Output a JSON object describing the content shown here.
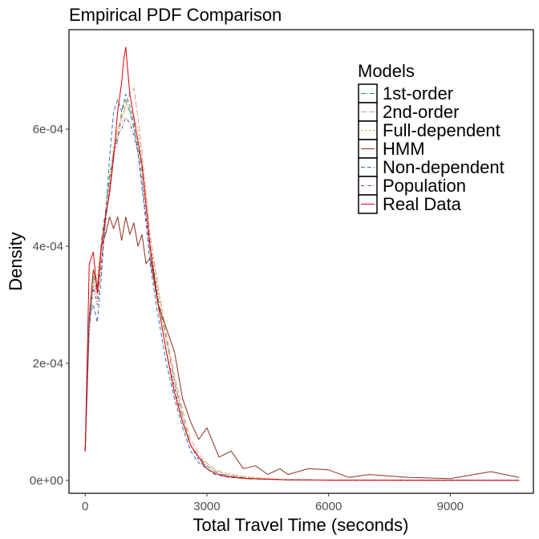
{
  "chart_data": {
    "type": "line",
    "title": "Empirical PDF Comparison",
    "xlabel": "Total Travel Time (seconds)",
    "ylabel": "Density",
    "xlim": [
      -400,
      11050
    ],
    "ylim": [
      -2.2e-05,
      0.00077
    ],
    "x_ticks": [
      0,
      3000,
      6000,
      9000
    ],
    "x_tick_labels": [
      "0",
      "3000",
      "6000",
      "9000"
    ],
    "y_ticks": [
      0,
      0.0002,
      0.0004,
      0.0006
    ],
    "y_tick_labels": [
      "0e+00",
      "2e-04",
      "4e-04",
      "6e-04"
    ],
    "grid": false,
    "legend": {
      "title": "Models",
      "position": "top-right"
    },
    "series": [
      {
        "name": "1st-order",
        "color": "#2e8b57",
        "dash": "6,2,1,2",
        "x": [
          0,
          100,
          200,
          300,
          400,
          500,
          600,
          700,
          800,
          900,
          1000,
          1100,
          1200,
          1300,
          1400,
          1500,
          1600,
          1800,
          2000,
          2200,
          2400,
          2600,
          2800,
          3000,
          3200,
          3500,
          4000,
          4500,
          5000,
          6000,
          8000,
          10700
        ],
        "y": [
          5e-05,
          0.00027,
          0.00035,
          0.00032,
          0.00041,
          0.00046,
          0.00052,
          0.00056,
          0.00058,
          0.00063,
          0.00065,
          0.00063,
          0.0006,
          0.00057,
          0.00053,
          0.00047,
          0.0004,
          0.00031,
          0.00024,
          0.00017,
          0.00011,
          6e-05,
          4e-05,
          2.5e-05,
          1.5e-05,
          8e-06,
          4e-06,
          2e-06,
          1e-06,
          5e-07,
          3e-07,
          0
        ]
      },
      {
        "name": "2nd-order",
        "color": "#e8998d",
        "dash": "7,3",
        "x": [
          0,
          100,
          200,
          300,
          400,
          500,
          600,
          700,
          800,
          900,
          1000,
          1100,
          1200,
          1300,
          1400,
          1500,
          1600,
          1800,
          2000,
          2200,
          2400,
          2600,
          2800,
          3000,
          3200,
          3500,
          4000,
          4500,
          5000,
          6000,
          8000,
          10700
        ],
        "y": [
          5e-05,
          0.00026,
          0.00034,
          0.00031,
          0.00038,
          0.00044,
          0.0005,
          0.00055,
          0.0006,
          0.00062,
          0.00064,
          0.00066,
          0.00067,
          0.00062,
          0.00056,
          0.00049,
          0.00042,
          0.00033,
          0.00025,
          0.00018,
          0.00012,
          7e-05,
          4.5e-05,
          3e-05,
          1.8e-05,
          1e-05,
          5e-06,
          3e-06,
          1e-06,
          5e-07,
          3e-07,
          0
        ]
      },
      {
        "name": "Full-dependent",
        "color": "#e0a030",
        "dash": "2,3",
        "x": [
          0,
          100,
          200,
          300,
          400,
          500,
          600,
          700,
          800,
          900,
          1000,
          1100,
          1200,
          1300,
          1400,
          1500,
          1600,
          1800,
          2000,
          2200,
          2400,
          2600,
          2800,
          3000,
          3200,
          3500,
          4000,
          4500,
          5000,
          6000,
          8000,
          10700
        ],
        "y": [
          5e-05,
          0.00025,
          0.00033,
          0.00035,
          0.0004,
          0.00045,
          0.00051,
          0.00057,
          0.0006,
          0.00061,
          0.00064,
          0.00063,
          0.00062,
          0.0006,
          0.00054,
          0.00048,
          0.00041,
          0.00032,
          0.00024,
          0.00017,
          0.00011,
          6e-05,
          4e-05,
          3e-05,
          1.8e-05,
          1.2e-05,
          6e-06,
          3e-06,
          1e-06,
          5e-07,
          3e-07,
          0
        ]
      },
      {
        "name": "HMM",
        "color": "#8b2e1e",
        "dash": "",
        "x": [
          0,
          100,
          200,
          300,
          400,
          500,
          600,
          700,
          800,
          900,
          1000,
          1100,
          1200,
          1300,
          1400,
          1500,
          1600,
          1800,
          2000,
          2200,
          2400,
          2600,
          2800,
          3000,
          3300,
          3600,
          3900,
          4200,
          4500,
          4800,
          5000,
          5500,
          6000,
          6500,
          7000,
          8000,
          9000,
          10000,
          10700
        ],
        "y": [
          5e-05,
          0.00028,
          0.00036,
          0.00033,
          0.0004,
          0.00042,
          0.00045,
          0.00043,
          0.00045,
          0.00041,
          0.00045,
          0.00042,
          0.00044,
          0.0004,
          0.00042,
          0.00037,
          0.00038,
          0.0003,
          0.00026,
          0.00022,
          0.00014,
          0.0001,
          7e-05,
          9e-05,
          4e-05,
          5e-05,
          2e-05,
          2.5e-05,
          1e-05,
          2e-05,
          1e-05,
          2e-05,
          1.8e-05,
          5e-06,
          1e-05,
          5e-06,
          3e-06,
          1.5e-05,
          5e-06
        ]
      },
      {
        "name": "Non-dependent",
        "color": "#3b6fa8",
        "dash": "5,3",
        "x": [
          0,
          100,
          200,
          300,
          400,
          500,
          600,
          700,
          800,
          900,
          1000,
          1100,
          1200,
          1300,
          1400,
          1500,
          1600,
          1800,
          2000,
          2200,
          2400,
          2600,
          2800,
          3000,
          3200,
          3500,
          4000,
          4500,
          5000,
          6000,
          8000,
          10700
        ],
        "y": [
          5e-05,
          0.00028,
          0.0003,
          0.00027,
          0.00035,
          0.00045,
          0.00055,
          0.00063,
          0.00065,
          0.00063,
          0.00066,
          0.00064,
          0.00061,
          0.00056,
          0.0005,
          0.00044,
          0.00037,
          0.00028,
          0.0002,
          0.00014,
          9e-05,
          5e-05,
          3e-05,
          2e-05,
          1e-05,
          6e-06,
          3e-06,
          2e-06,
          1e-06,
          5e-07,
          3e-07,
          0
        ]
      },
      {
        "name": "Population",
        "color": "#7b3f8c",
        "dash": "4,2,1,2",
        "x": [
          0,
          100,
          200,
          300,
          400,
          500,
          600,
          700,
          800,
          900,
          1000,
          1100,
          1200,
          1300,
          1400,
          1500,
          1600,
          1800,
          2000,
          2200,
          2400,
          2600,
          2800,
          3000,
          3200,
          3500,
          4000,
          4500,
          5000,
          6000,
          8000,
          10700
        ],
        "y": [
          5e-05,
          0.00026,
          0.00033,
          0.0003,
          0.00037,
          0.00044,
          0.0005,
          0.00056,
          0.00059,
          0.0006,
          0.00062,
          0.00061,
          0.00059,
          0.00056,
          0.00051,
          0.00045,
          0.00039,
          0.0003,
          0.00022,
          0.00016,
          0.0001,
          6e-05,
          3.5e-05,
          2e-05,
          1.2e-05,
          7e-06,
          3e-06,
          2e-06,
          1e-06,
          5e-07,
          3e-07,
          0
        ]
      },
      {
        "name": "Real Data",
        "color": "#e00000",
        "dash": "",
        "x": [
          0,
          100,
          200,
          300,
          400,
          500,
          600,
          700,
          800,
          900,
          950,
          1000,
          1050,
          1100,
          1200,
          1300,
          1400,
          1500,
          1600,
          1800,
          2000,
          2200,
          2400,
          2600,
          2800,
          3000,
          3200,
          3500,
          4000,
          4500,
          5000,
          6000,
          8000,
          10700
        ],
        "y": [
          5e-05,
          0.00037,
          0.00039,
          0.00032,
          0.0004,
          0.00045,
          0.00049,
          0.00055,
          0.00063,
          0.00068,
          0.00072,
          0.00074,
          0.0007,
          0.00066,
          0.00062,
          0.00058,
          0.00054,
          0.00047,
          0.0004,
          0.0003,
          0.00022,
          0.00015,
          0.0001,
          6e-05,
          4e-05,
          2e-05,
          1.2e-05,
          6e-06,
          3e-06,
          2e-06,
          1e-06,
          5e-07,
          2e-07,
          0
        ]
      }
    ]
  }
}
